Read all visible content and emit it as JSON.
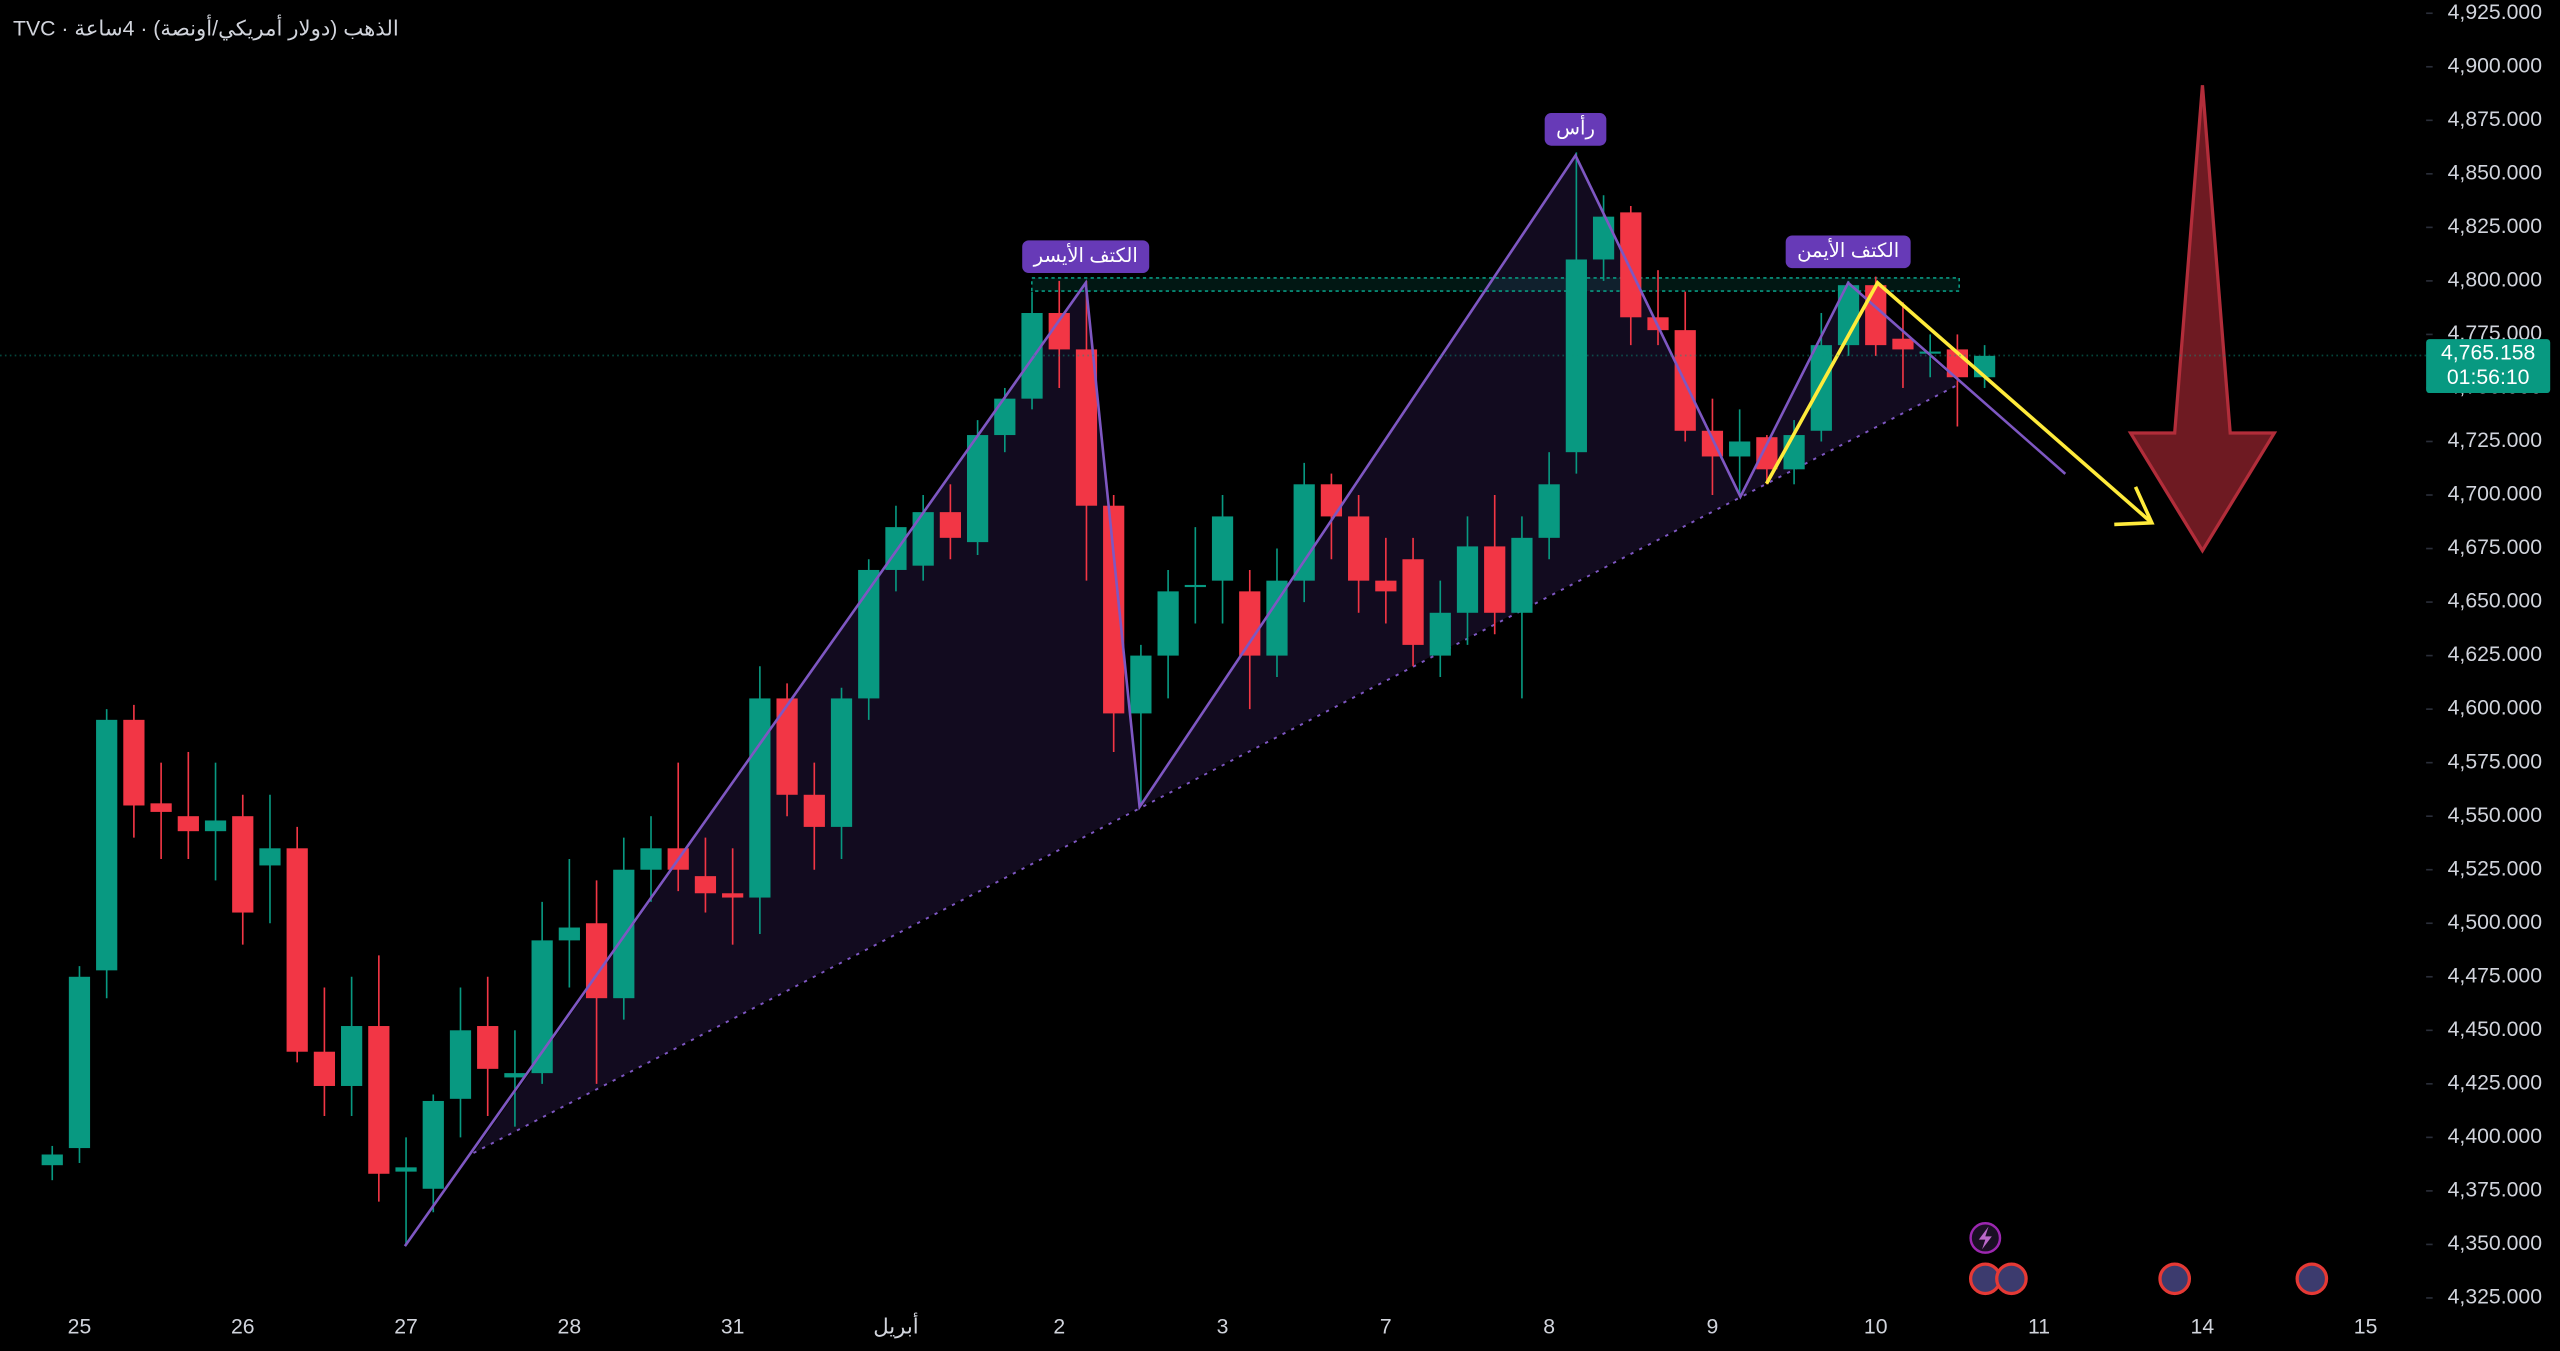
{
  "chart_data": {
    "type": "candlestick",
    "title": "TVC · الذهب (دولار أمريكي/أونصة) · 4ساعة",
    "up_color": "#089981",
    "down_color": "#f23645",
    "categories": [
      null,
      "25",
      null,
      null,
      null,
      null,
      null,
      "26",
      null,
      null,
      null,
      null,
      null,
      "27",
      null,
      null,
      null,
      null,
      null,
      "28",
      null,
      null,
      null,
      null,
      null,
      "31",
      null,
      null,
      null,
      null,
      null,
      "أبريل",
      null,
      null,
      null,
      null,
      null,
      "2",
      null,
      null,
      null,
      null,
      null,
      "3",
      null,
      null,
      null,
      null,
      null,
      "7",
      null,
      null,
      null,
      null,
      null,
      "8",
      null,
      null,
      null,
      null,
      null,
      "9",
      null,
      null,
      null,
      null,
      null,
      "10",
      null,
      null,
      null,
      null,
      null,
      "11",
      null,
      null,
      null,
      null,
      null,
      "14",
      null,
      null,
      null,
      null,
      null,
      "15"
    ],
    "open": [
      4387,
      4395,
      4478,
      4595,
      4556,
      4550,
      4543,
      4550,
      4527,
      4535,
      4440,
      4424,
      4452,
      4384,
      4376,
      4418,
      4452,
      4428,
      4430,
      4492,
      4500,
      4465,
      4525,
      4535,
      4522,
      4514,
      4512,
      4605,
      4560,
      4545,
      4605,
      4665,
      4667,
      4692,
      4678,
      4728,
      4745,
      4785,
      4768,
      4695,
      4598,
      4625,
      4657,
      4660,
      4655,
      4625,
      4660,
      4705,
      4690,
      4660,
      4670,
      4625,
      4645,
      4676,
      4645,
      4680,
      4720,
      4810,
      4832,
      4783,
      4777,
      4730,
      4718,
      4727,
      4712,
      4730,
      4770,
      4798,
      4773,
      4766,
      4768,
      4755,
      null,
      null,
      null,
      null,
      null,
      null,
      null,
      null,
      null,
      null,
      null,
      null,
      null,
      null
    ],
    "high": [
      4396,
      4480,
      4600,
      4602,
      4575,
      4580,
      4575,
      4560,
      4560,
      4545,
      4470,
      4475,
      4485,
      4400,
      4420,
      4470,
      4475,
      4450,
      4510,
      4530,
      4520,
      4540,
      4550,
      4575,
      4540,
      4535,
      4620,
      4612,
      4575,
      4610,
      4670,
      4695,
      4700,
      4705,
      4735,
      4750,
      4795,
      4800,
      4800,
      4700,
      4630,
      4665,
      4685,
      4700,
      4665,
      4675,
      4715,
      4710,
      4700,
      4680,
      4680,
      4660,
      4690,
      4700,
      4690,
      4720,
      4860,
      4840,
      4835,
      4805,
      4795,
      4745,
      4740,
      4728,
      4735,
      4785,
      4800,
      4802,
      4790,
      4775,
      4775,
      4770,
      null,
      null,
      null,
      null,
      null,
      null,
      null,
      null,
      null,
      null,
      null,
      null,
      null,
      null
    ],
    "low": [
      4380,
      4388,
      4465,
      4540,
      4530,
      4530,
      4520,
      4490,
      4500,
      4435,
      4410,
      4410,
      4370,
      4350,
      4365,
      4400,
      4410,
      4405,
      4425,
      4470,
      4425,
      4455,
      4510,
      4515,
      4505,
      4490,
      4495,
      4550,
      4525,
      4530,
      4595,
      4655,
      4660,
      4670,
      4672,
      4720,
      4740,
      4750,
      4660,
      4580,
      4555,
      4605,
      4640,
      4640,
      4600,
      4615,
      4650,
      4670,
      4645,
      4640,
      4620,
      4615,
      4630,
      4635,
      4605,
      4670,
      4710,
      4800,
      4770,
      4770,
      4725,
      4700,
      4700,
      4705,
      4705,
      4725,
      4765,
      4765,
      4750,
      4755,
      4732,
      4750,
      null,
      null,
      null,
      null,
      null,
      null,
      null,
      null,
      null,
      null,
      null,
      null,
      null,
      null
    ],
    "close": [
      4392,
      4475,
      4595,
      4555,
      4552,
      4543,
      4548,
      4505,
      4535,
      4440,
      4424,
      4452,
      4383,
      4386,
      4417,
      4450,
      4432,
      4430,
      4492,
      4498,
      4465,
      4525,
      4535,
      4525,
      4514,
      4512,
      4605,
      4560,
      4545,
      4605,
      4665,
      4685,
      4692,
      4680,
      4728,
      4745,
      4785,
      4768,
      4695,
      4598,
      4625,
      4655,
      4658,
      4690,
      4625,
      4660,
      4705,
      4690,
      4660,
      4655,
      4630,
      4645,
      4676,
      4645,
      4680,
      4705,
      4810,
      4830,
      4783,
      4777,
      4730,
      4718,
      4725,
      4712,
      4728,
      4770,
      4798,
      4770,
      4768,
      4767,
      4755,
      4765,
      null,
      null,
      null,
      null,
      null,
      null,
      null,
      null,
      null,
      null,
      null,
      null,
      null,
      null
    ],
    "ylim": [
      4321,
      4931
    ],
    "yticks": [
      {
        "value": 4325,
        "label": "4,325.000"
      },
      {
        "value": 4350,
        "label": "4,350.000"
      },
      {
        "value": 4375,
        "label": "4,375.000"
      },
      {
        "value": 4400,
        "label": "4,400.000"
      },
      {
        "value": 4425,
        "label": "4,425.000"
      },
      {
        "value": 4450,
        "label": "4,450.000"
      },
      {
        "value": 4475,
        "label": "4,475.000"
      },
      {
        "value": 4500,
        "label": "4,500.000"
      },
      {
        "value": 4525,
        "label": "4,525.000"
      },
      {
        "value": 4550,
        "label": "4,550.000"
      },
      {
        "value": 4575,
        "label": "4,575.000"
      },
      {
        "value": 4600,
        "label": "4,600.000"
      },
      {
        "value": 4625,
        "label": "4,625.000"
      },
      {
        "value": 4650,
        "label": "4,650.000"
      },
      {
        "value": 4675,
        "label": "4,675.000"
      },
      {
        "value": 4700,
        "label": "4,700.000"
      },
      {
        "value": 4725,
        "label": "4,725.000"
      },
      {
        "value": 4750,
        "label": "4,750.000"
      },
      {
        "value": 4775,
        "label": "4,775.000"
      },
      {
        "value": 4800,
        "label": "4,800.000"
      },
      {
        "value": 4825,
        "label": "4,825.000"
      },
      {
        "value": 4850,
        "label": "4,850.000"
      },
      {
        "value": 4875,
        "label": "4,875.000"
      },
      {
        "value": 4900,
        "label": "4,900.000"
      },
      {
        "value": 4925,
        "label": "4,925.000"
      }
    ],
    "grid": false,
    "last_price": {
      "value": 4765.158,
      "label": "4,765.158"
    },
    "countdown": "01:56:10",
    "annotations": [
      "الكتف الأيسر",
      "رأس",
      "الكتف الأيمن"
    ]
  }
}
